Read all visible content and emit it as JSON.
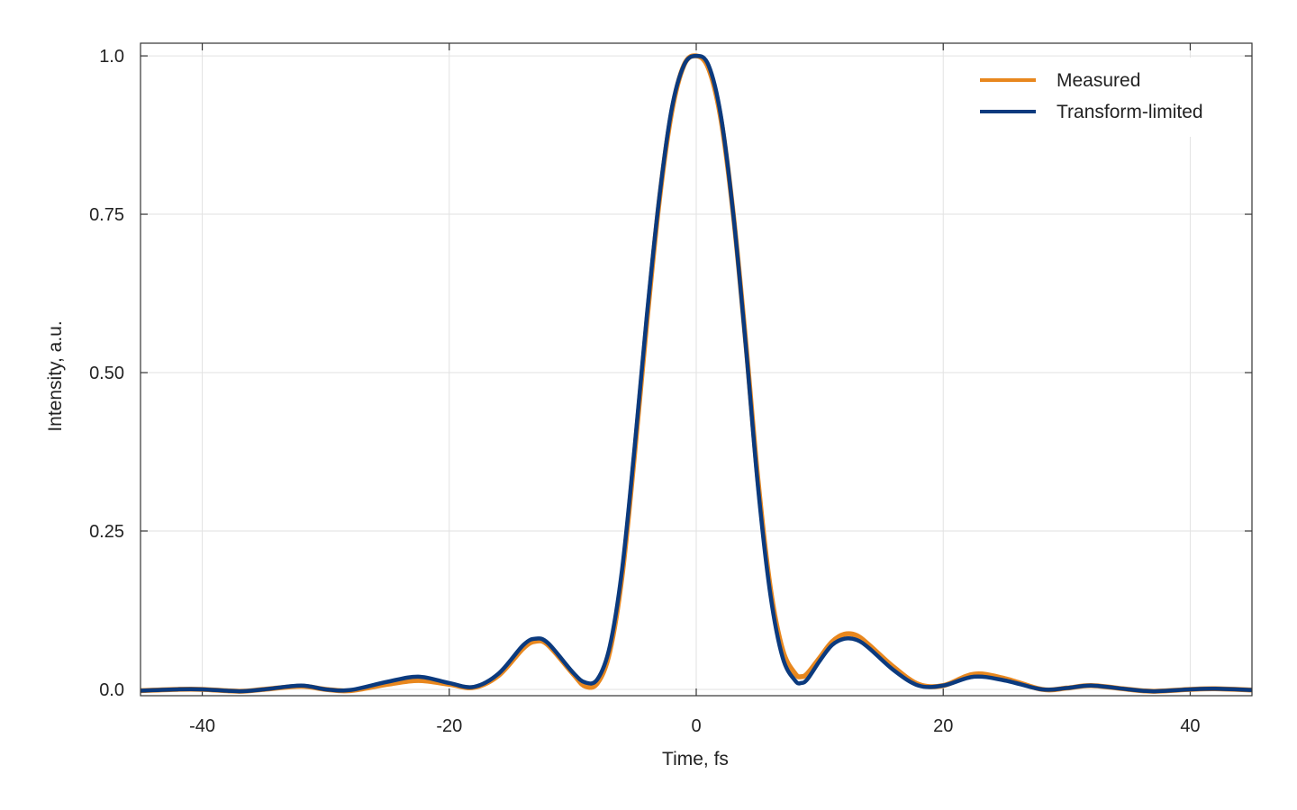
{
  "chart_data": {
    "type": "line",
    "title": "",
    "xlabel": "Time, fs",
    "ylabel": "Intensity, a.u.",
    "xlim": [
      -45,
      45
    ],
    "ylim": [
      -0.01,
      1.02
    ],
    "xticks": [
      -40,
      -20,
      0,
      20,
      40
    ],
    "xtick_labels": [
      "-40",
      "-20",
      "0",
      "20",
      "40"
    ],
    "yticks": [
      0,
      0.25,
      0.5,
      0.75,
      1.0
    ],
    "ytick_labels": [
      "0.0",
      "0.25",
      "0.50",
      "0.75",
      "1.0"
    ],
    "grid": true,
    "legend_position": "top-right",
    "series": [
      {
        "name": "Measured",
        "color": "#E8871E",
        "x": [
          -45,
          -42,
          -40,
          -37,
          -35,
          -32,
          -30,
          -28,
          -25,
          -22.5,
          -20,
          -18,
          -16,
          -14,
          -13,
          -12,
          -10,
          -9,
          -8,
          -7,
          -6,
          -5,
          -4,
          -3,
          -2,
          -1,
          0,
          1,
          2,
          3,
          4,
          5,
          6,
          7,
          8,
          8.5,
          9,
          10,
          11,
          12,
          13,
          14,
          16,
          18,
          20,
          22.5,
          25,
          28,
          30,
          32,
          35,
          37,
          40,
          42,
          45
        ],
        "y": [
          -0.002,
          0.0,
          0.0,
          -0.003,
          0.0,
          0.005,
          0.0,
          -0.002,
          0.008,
          0.014,
          0.008,
          0.003,
          0.022,
          0.065,
          0.076,
          0.07,
          0.025,
          0.005,
          0.01,
          0.06,
          0.18,
          0.37,
          0.58,
          0.77,
          0.91,
          0.985,
          1.0,
          0.98,
          0.9,
          0.75,
          0.55,
          0.33,
          0.16,
          0.062,
          0.025,
          0.02,
          0.025,
          0.05,
          0.075,
          0.087,
          0.085,
          0.07,
          0.035,
          0.008,
          0.006,
          0.024,
          0.017,
          0.0,
          0.002,
          0.006,
          0.0,
          -0.003,
          0.0,
          0.001,
          -0.001
        ]
      },
      {
        "name": "Transform-limited",
        "color": "#0B3A7E",
        "x": [
          -45,
          -42,
          -40,
          -37,
          -35,
          -32,
          -30,
          -28,
          -25,
          -22.5,
          -20,
          -18,
          -16,
          -14,
          -13,
          -12,
          -10,
          -9,
          -8,
          -7,
          -6,
          -5,
          -4,
          -3,
          -2,
          -1,
          0,
          1,
          2,
          3,
          4,
          5,
          6,
          7,
          8,
          8.5,
          9,
          10,
          11,
          12,
          13,
          14,
          16,
          18,
          20,
          22.5,
          25,
          28,
          30,
          32,
          35,
          37,
          40,
          42,
          45
        ],
        "y": [
          -0.002,
          0.0,
          0.0,
          -0.003,
          0.0,
          0.006,
          0.0,
          -0.001,
          0.012,
          0.02,
          0.01,
          0.004,
          0.025,
          0.07,
          0.08,
          0.073,
          0.027,
          0.011,
          0.016,
          0.068,
          0.19,
          0.38,
          0.59,
          0.775,
          0.915,
          0.985,
          1.0,
          0.985,
          0.905,
          0.75,
          0.545,
          0.32,
          0.15,
          0.05,
          0.014,
          0.01,
          0.016,
          0.045,
          0.07,
          0.08,
          0.078,
          0.065,
          0.03,
          0.006,
          0.006,
          0.02,
          0.014,
          0.0,
          0.002,
          0.006,
          0.0,
          -0.003,
          0.0,
          0.001,
          -0.001
        ]
      }
    ]
  }
}
